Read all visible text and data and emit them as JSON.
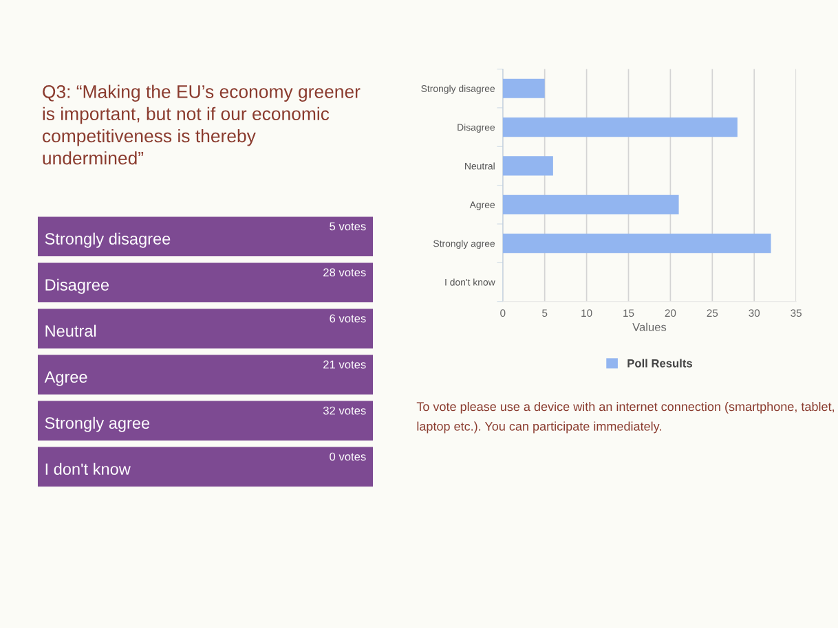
{
  "chart_data": [
    {
      "type": "other",
      "title": "Q3: “Making the EU’s economy greener\nis important, but not if our economic\ncompetitiveness is thereby\nundermined”",
      "categories": [
        "Strongly disagree",
        "Disagree",
        "Neutral",
        "Agree",
        "Strongly agree",
        "I don't know"
      ],
      "value_labels": [
        "5 votes",
        "28 votes",
        "6 votes",
        "21 votes",
        "32 votes",
        "0 votes"
      ],
      "color": "#7d4a92"
    },
    {
      "type": "bar",
      "orientation": "horizontal",
      "categories": [
        "Strongly disagree",
        "Disagree",
        "Neutral",
        "Agree",
        "Strongly agree",
        "I don't know"
      ],
      "series": [
        {
          "name": "Poll Results",
          "color": "#92b5f0",
          "values": [
            5,
            28,
            6,
            21,
            32,
            0
          ]
        }
      ],
      "xlim": [
        0,
        35
      ],
      "xticks": [
        0,
        5,
        10,
        15,
        20,
        25,
        30,
        35
      ],
      "xlabel": "Values",
      "grid": "x",
      "legend": "bottom",
      "annotations": [
        "To vote please use a device with an internet connection (smartphone, tablet, laptop etc.). You can participate immediately."
      ]
    }
  ]
}
